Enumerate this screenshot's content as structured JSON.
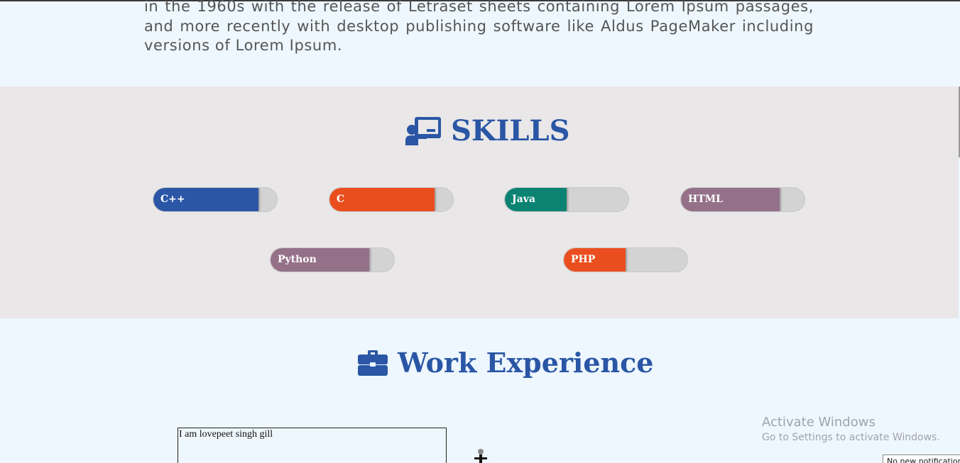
{
  "intro": {
    "text": "in the 1960s with the release of Letraset sheets containing Lorem Ipsum passages, and more recently with desktop publishing software like Aldus PageMaker including versions of Lorem Ipsum."
  },
  "skills": {
    "title": "SKILLS",
    "icon": "chalkboard-teacher-icon",
    "items": [
      {
        "label": "C++",
        "level": 0.85,
        "color": "#2a56a5"
      },
      {
        "label": "C",
        "level": 0.85,
        "color": "#eb4e1e"
      },
      {
        "label": "Java",
        "level": 0.5,
        "color": "#0a8373"
      },
      {
        "label": "HTML",
        "level": 0.8,
        "color": "#957189"
      },
      {
        "label": "Python",
        "level": 0.8,
        "color": "#957189"
      },
      {
        "label": "PHP",
        "level": 0.5,
        "color": "#eb4e1e"
      }
    ]
  },
  "work": {
    "title": "Work Experience",
    "icon": "briefcase-icon",
    "entry_text": "I am lovepeet singh gill"
  },
  "watermark": {
    "line1": "Activate Windows",
    "line2": "Go to Settings to activate Windows."
  },
  "notification": {
    "text": "No new notifications"
  },
  "colors": {
    "accent": "#2a56a5",
    "section_bg": "#e9e7e8",
    "page_bg": "#eef7fe"
  }
}
